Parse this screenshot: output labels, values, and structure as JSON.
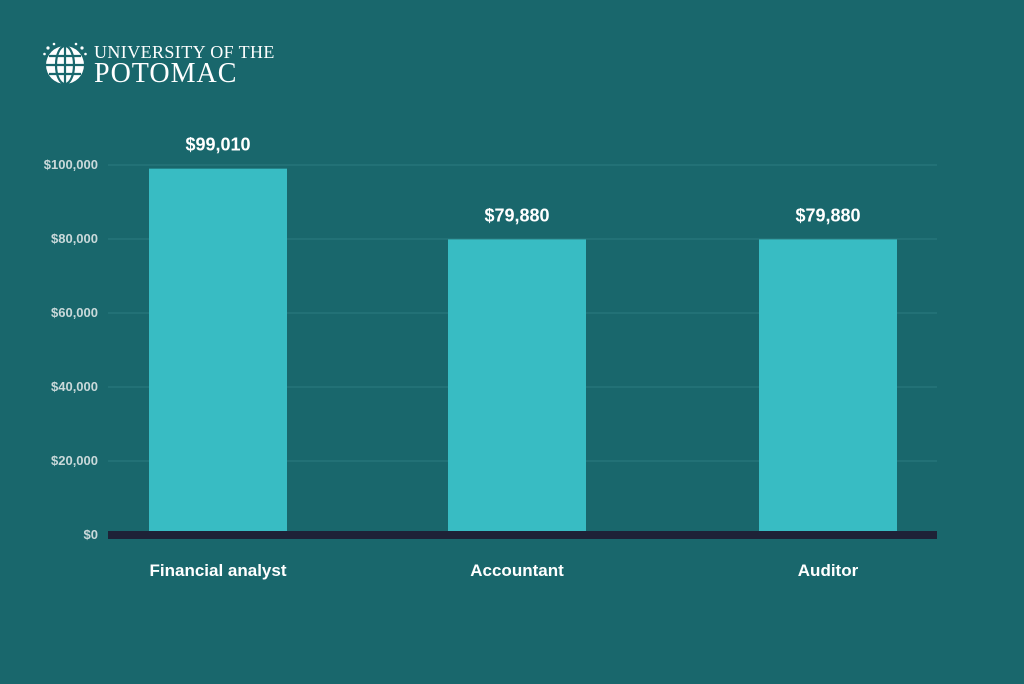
{
  "brand": {
    "line1": "UNIVERSITY OF THE",
    "line2": "POTOMAC"
  },
  "colors": {
    "background": "#19676c",
    "bar": "#38bcc3",
    "baseline": "#1e2237",
    "grid": "#2c7b80",
    "text": "#ffffff",
    "tick_text": "#c9d9da"
  },
  "chart_data": {
    "type": "bar",
    "categories": [
      "Financial analyst",
      "Accountant",
      "Auditor"
    ],
    "values": [
      99010,
      79880,
      79880
    ],
    "value_labels": [
      "$99,010",
      "$79,880",
      "$79,880"
    ],
    "y_ticks": [
      0,
      20000,
      40000,
      60000,
      80000,
      100000
    ],
    "y_tick_labels": [
      "$0",
      "$20,000",
      "$40,000",
      "$60,000",
      "$80,000",
      "$100,000"
    ],
    "ylim": [
      0,
      100000
    ],
    "grid": true,
    "legend": "none",
    "title": "",
    "xlabel": "",
    "ylabel": ""
  }
}
